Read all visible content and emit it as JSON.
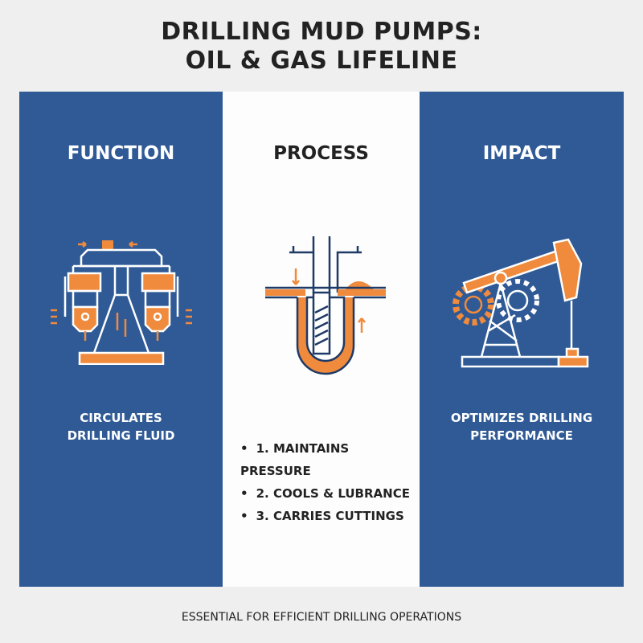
{
  "title_lines": [
    "DRILLING MUD PUMPS:",
    "OIL & GAS LIFELINE"
  ],
  "colors": {
    "blue": "#2f5a96",
    "orange": "#f08a3c",
    "background": "#efefef"
  },
  "panels": [
    {
      "heading": "FUNCTION",
      "icon": "mud-pump-icon",
      "description_lines": [
        "CIRCULATES",
        "DRILLING FLUID"
      ]
    },
    {
      "heading": "PROCESS",
      "icon": "wellbore-circulation-icon",
      "items": [
        "1. MAINTAINS PRESSURE",
        "2. COOLS & LUBRANCE",
        "3. CARRIES CUTTINGS"
      ]
    },
    {
      "heading": "IMPACT",
      "icon": "pumpjack-gears-icon",
      "description_lines": [
        "OPTIMIZES DRILLING",
        "PERFORMANCE"
      ]
    }
  ],
  "footer": "ESSENTIAL FOR EFFICIENT DRILLING OPERATIONS"
}
